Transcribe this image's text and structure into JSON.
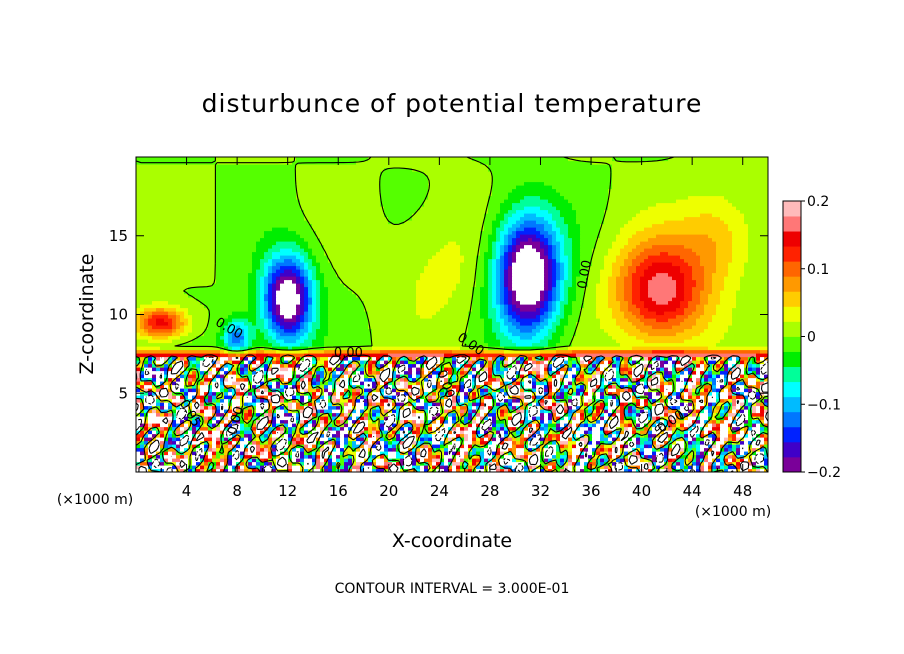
{
  "chart_data": {
    "type": "heatmap",
    "title": "disturbunce of potential temperature",
    "xlabel": "X-coordinate",
    "ylabel": "Z-coordinate",
    "x_unit_left": "(×1000 m)",
    "x_unit_right": "(×1000 m)",
    "footer": "CONTOUR INTERVAL = 3.000E-01",
    "xlim": [
      0,
      50
    ],
    "ylim": [
      0,
      20
    ],
    "x_ticks": [
      4,
      8,
      12,
      16,
      20,
      24,
      28,
      32,
      36,
      40,
      44,
      48
    ],
    "y_ticks": [
      5,
      10,
      15
    ],
    "colorbar": {
      "min": -0.2,
      "max": 0.2,
      "ticks": [
        0.2,
        0.1,
        0,
        -0.1,
        -0.2
      ],
      "tick_labels": [
        "0.2",
        "0.1",
        "0",
        "−0.1",
        "−0.2"
      ],
      "colors": [
        "#7a0099",
        "#3f00c8",
        "#0022ff",
        "#0077ff",
        "#00bbff",
        "#00ffff",
        "#00ff99",
        "#00ee00",
        "#55ff00",
        "#aaff00",
        "#eeff00",
        "#ffcc00",
        "#ff9900",
        "#ff6600",
        "#ff2200",
        "#ee0000",
        "#ff7777",
        "#ffbbbb"
      ]
    },
    "contour_labels": [
      {
        "text": "0.00",
        "x": 35.8,
        "y": 12.5,
        "angle": -80
      },
      {
        "text": "0.00",
        "x": 7.2,
        "y": 8.9,
        "angle": 30
      },
      {
        "text": "0.00",
        "x": 16.8,
        "y": 7.3,
        "angle": 0
      },
      {
        "text": "0.00",
        "x": 26.3,
        "y": 7.9,
        "angle": 35
      },
      {
        "text": "0.00",
        "x": 24.2,
        "y": 5.5,
        "angle": 70
      },
      {
        "text": "0.00",
        "x": 8.2,
        "y": 3.2,
        "angle": -75
      },
      {
        "text": "0.05",
        "x": 4.0,
        "y": 3.6,
        "angle": 60
      },
      {
        "text": "0.00",
        "x": 42.5,
        "y": 3.0,
        "angle": -35
      }
    ],
    "dark_regions": [
      {
        "x": 12.0,
        "z": 11.0,
        "sx": 2.0,
        "sz": 2.8,
        "amp": -0.24
      },
      {
        "x": 31.0,
        "z": 12.5,
        "sx": 2.6,
        "sz": 3.8,
        "amp": -0.26
      },
      {
        "x": 8.0,
        "z": 8.5,
        "sx": 1.2,
        "sz": 1.3,
        "amp": -0.13
      },
      {
        "x": 41.5,
        "z": 11.5,
        "sx": 3.6,
        "sz": 3.2,
        "amp": 0.17
      },
      {
        "x": 46.0,
        "z": 15.0,
        "sx": 3.0,
        "sz": 3.0,
        "amp": 0.06
      },
      {
        "x": 2.0,
        "z": 9.5,
        "sx": 2.0,
        "sz": 1.0,
        "amp": 0.15
      },
      {
        "x": 24.0,
        "z": 13.0,
        "sx": 4.0,
        "sz": 4.0,
        "amp": 0.03
      }
    ]
  }
}
